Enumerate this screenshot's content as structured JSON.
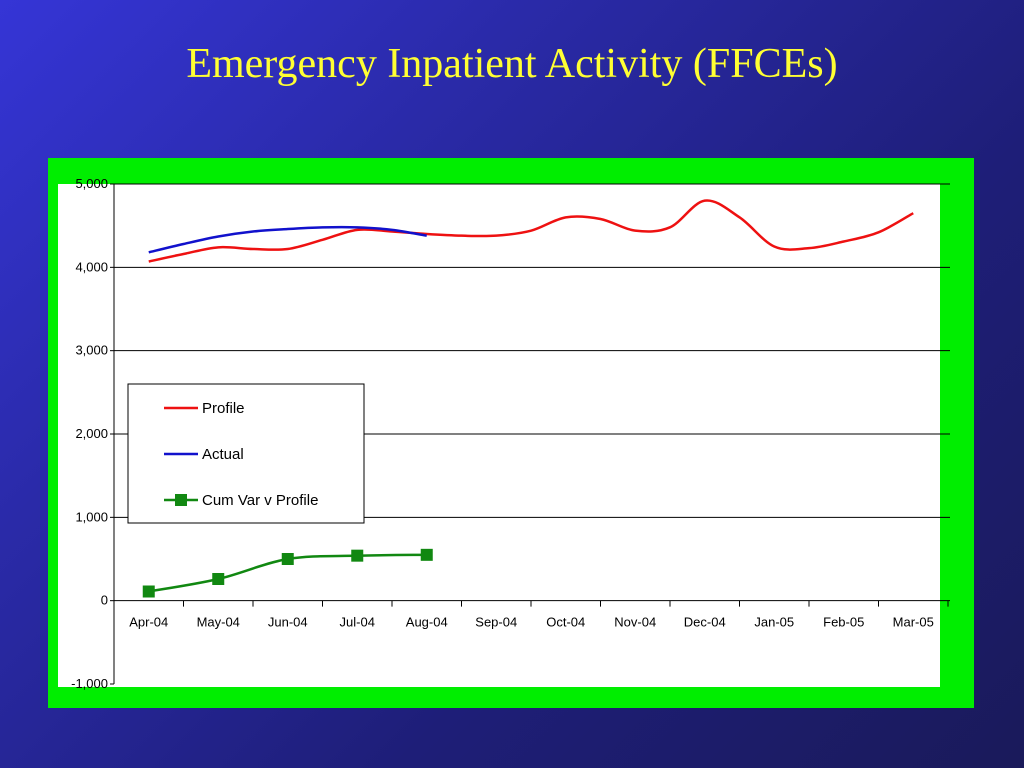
{
  "slide": {
    "title": "Emergency Inpatient Activity (FFCEs)"
  },
  "colors": {
    "background": "#2a2aa8",
    "title": "#ffff33",
    "frame": "#00ee00",
    "profile": "#ee1111",
    "actual": "#1111cc",
    "cumvar": "#118811",
    "negative_label": "#cc0000"
  },
  "chart_data": {
    "type": "line",
    "title": "",
    "xlabel": "",
    "ylabel": "",
    "categories": [
      "Apr-04",
      "May-04",
      "Jun-04",
      "Jul-04",
      "Aug-04",
      "Sep-04",
      "Oct-04",
      "Nov-04",
      "Dec-04",
      "Jan-05",
      "Feb-05",
      "Mar-05"
    ],
    "y_ticks": [
      "-1,000",
      "0",
      "1,000",
      "2,000",
      "3,000",
      "4,000",
      "5,000"
    ],
    "ylim": [
      -1000,
      5000
    ],
    "grid": true,
    "legend_position": "left-middle",
    "series": [
      {
        "name": "Profile",
        "color": "#ee1111",
        "marker": "none",
        "x": [
          0,
          0.5,
          1,
          1.5,
          2,
          2.5,
          3,
          3.5,
          4,
          4.5,
          5,
          5.5,
          6,
          6.5,
          7,
          7.5,
          8,
          8.5,
          9,
          9.5,
          10,
          10.5,
          11
        ],
        "values": [
          4070,
          4160,
          4240,
          4220,
          4220,
          4330,
          4450,
          4430,
          4400,
          4380,
          4380,
          4440,
          4600,
          4580,
          4440,
          4480,
          4800,
          4600,
          4250,
          4230,
          4310,
          4420,
          4650
        ]
      },
      {
        "name": "Actual",
        "color": "#1111cc",
        "marker": "none",
        "x": [
          0,
          0.5,
          1,
          1.5,
          2,
          2.5,
          3,
          3.5,
          4
        ],
        "values": [
          4180,
          4280,
          4370,
          4430,
          4460,
          4480,
          4480,
          4450,
          4380
        ]
      },
      {
        "name": "Cum Var v Profile",
        "color": "#118811",
        "marker": "square",
        "x": [
          0,
          1,
          2,
          3,
          4
        ],
        "values": [
          110,
          260,
          500,
          540,
          550
        ]
      }
    ]
  }
}
